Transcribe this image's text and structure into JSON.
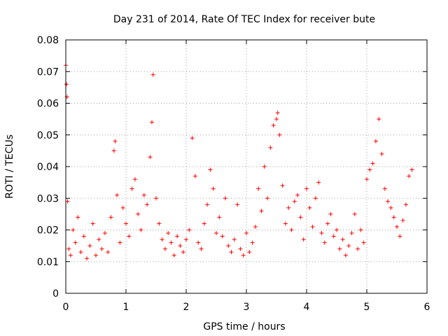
{
  "chart_data": {
    "type": "scatter",
    "title": "Day 231 of 2014, Rate Of TEC Index for receiver bute",
    "xlabel": "GPS time / hours",
    "ylabel": "ROTI / TECUs",
    "xlim": [
      0,
      6
    ],
    "ylim": [
      0,
      0.08
    ],
    "xticks": [
      "0",
      "1",
      "2",
      "3",
      "4",
      "5",
      "6"
    ],
    "yticks": [
      "0",
      "0.01",
      "0.02",
      "0.03",
      "0.04",
      "0.05",
      "0.06",
      "0.07",
      "0.08"
    ],
    "grid": true,
    "marker": "+",
    "color": "#ff0000",
    "series": [
      {
        "name": "ROTI",
        "x": [
          0.0,
          0.01,
          0.02,
          0.03,
          0.05,
          0.08,
          0.12,
          0.16,
          0.2,
          0.25,
          0.3,
          0.35,
          0.4,
          0.45,
          0.5,
          0.55,
          0.6,
          0.65,
          0.7,
          0.75,
          0.8,
          0.82,
          0.85,
          0.9,
          0.95,
          1.0,
          1.05,
          1.1,
          1.15,
          1.2,
          1.25,
          1.3,
          1.35,
          1.4,
          1.43,
          1.45,
          1.5,
          1.55,
          1.6,
          1.65,
          1.7,
          1.75,
          1.8,
          1.85,
          1.9,
          1.95,
          2.0,
          2.05,
          2.1,
          2.15,
          2.2,
          2.25,
          2.3,
          2.35,
          2.4,
          2.45,
          2.5,
          2.55,
          2.6,
          2.65,
          2.7,
          2.75,
          2.8,
          2.85,
          2.9,
          2.95,
          3.0,
          3.05,
          3.1,
          3.15,
          3.2,
          3.25,
          3.3,
          3.35,
          3.4,
          3.45,
          3.5,
          3.52,
          3.55,
          3.6,
          3.65,
          3.7,
          3.75,
          3.8,
          3.85,
          3.9,
          3.95,
          4.0,
          4.05,
          4.1,
          4.15,
          4.2,
          4.25,
          4.3,
          4.35,
          4.4,
          4.45,
          4.5,
          4.55,
          4.6,
          4.65,
          4.7,
          4.75,
          4.8,
          4.85,
          4.9,
          4.95,
          5.0,
          5.05,
          5.1,
          5.15,
          5.2,
          5.25,
          5.3,
          5.35,
          5.4,
          5.45,
          5.5,
          5.55,
          5.6,
          5.65,
          5.7,
          5.75
        ],
        "y": [
          0.072,
          0.066,
          0.062,
          0.029,
          0.014,
          0.012,
          0.02,
          0.016,
          0.024,
          0.013,
          0.018,
          0.011,
          0.015,
          0.022,
          0.012,
          0.017,
          0.014,
          0.019,
          0.013,
          0.024,
          0.045,
          0.048,
          0.031,
          0.016,
          0.027,
          0.022,
          0.018,
          0.033,
          0.036,
          0.025,
          0.02,
          0.031,
          0.028,
          0.043,
          0.054,
          0.069,
          0.03,
          0.022,
          0.017,
          0.014,
          0.019,
          0.016,
          0.012,
          0.018,
          0.015,
          0.013,
          0.017,
          0.02,
          0.049,
          0.037,
          0.016,
          0.014,
          0.022,
          0.028,
          0.039,
          0.033,
          0.019,
          0.024,
          0.018,
          0.03,
          0.015,
          0.013,
          0.017,
          0.028,
          0.014,
          0.012,
          0.019,
          0.013,
          0.016,
          0.021,
          0.033,
          0.026,
          0.04,
          0.03,
          0.046,
          0.053,
          0.055,
          0.057,
          0.05,
          0.034,
          0.022,
          0.027,
          0.02,
          0.029,
          0.031,
          0.024,
          0.017,
          0.033,
          0.027,
          0.021,
          0.03,
          0.035,
          0.019,
          0.016,
          0.022,
          0.025,
          0.018,
          0.02,
          0.014,
          0.017,
          0.012,
          0.015,
          0.019,
          0.025,
          0.014,
          0.02,
          0.016,
          0.036,
          0.039,
          0.041,
          0.048,
          0.055,
          0.044,
          0.033,
          0.029,
          0.027,
          0.024,
          0.021,
          0.018,
          0.023,
          0.028,
          0.037,
          0.039
        ]
      }
    ]
  }
}
